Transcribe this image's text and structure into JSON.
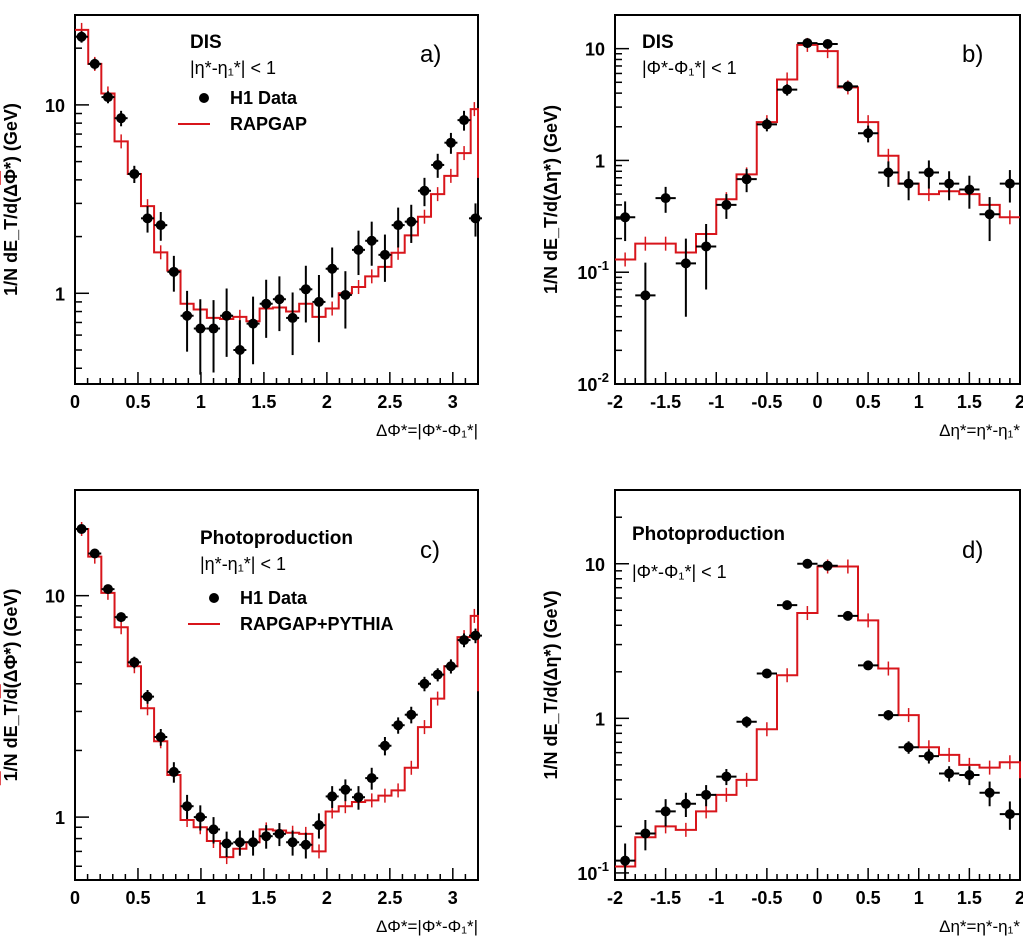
{
  "chart_data": [
    {
      "id": "a",
      "type": "step+errorbar",
      "panel_label": "a)",
      "title": "DIS",
      "cut": "|η*-η₁*| < 1",
      "legend": {
        "points": "H1 Data",
        "line": "RAPGAP",
        "placement": "top-center"
      },
      "xlabel": "ΔΦ*=|Φ*-Φ₁*|",
      "ylabel": "1/N dE_T/d(ΔΦ*) (GeV)",
      "xlim": [
        0,
        3.2
      ],
      "ylim": [
        0.33,
        30
      ],
      "yscale": "log",
      "xticks": [
        "0",
        "0.5",
        "1",
        "1.5",
        "2",
        "2.5",
        "3"
      ],
      "xtick_values": [
        0,
        0.5,
        1,
        1.5,
        2,
        2.5,
        3
      ],
      "yticks": [
        {
          "v": 1,
          "main": "1",
          "sup": ""
        },
        {
          "v": 10,
          "main": "10",
          "sup": ""
        }
      ],
      "colors": {
        "data": "#000000",
        "mc": "#d8151b"
      },
      "step": {
        "edges": [
          0,
          0.105,
          0.209,
          0.314,
          0.419,
          0.524,
          0.628,
          0.733,
          0.838,
          0.942,
          1.047,
          1.152,
          1.257,
          1.361,
          1.466,
          1.571,
          1.676,
          1.78,
          1.885,
          1.99,
          2.094,
          2.199,
          2.304,
          2.409,
          2.513,
          2.618,
          2.723,
          2.827,
          2.932,
          3.037,
          3.142,
          3.2
        ],
        "values": [
          25,
          16.5,
          11.5,
          6.4,
          4.3,
          2.9,
          1.65,
          1.32,
          0.88,
          0.82,
          0.74,
          0.73,
          0.75,
          0.71,
          0.83,
          0.84,
          0.8,
          0.88,
          0.75,
          0.83,
          1.0,
          1.08,
          1.23,
          1.38,
          1.64,
          2.03,
          2.55,
          3.36,
          4.2,
          5.55,
          9.5,
          4.1
        ]
      },
      "points": {
        "x": [
          0.052,
          0.157,
          0.262,
          0.366,
          0.471,
          0.576,
          0.681,
          0.785,
          0.89,
          0.995,
          1.1,
          1.204,
          1.309,
          1.414,
          1.518,
          1.623,
          1.728,
          1.833,
          1.937,
          2.042,
          2.147,
          2.251,
          2.356,
          2.461,
          2.566,
          2.67,
          2.775,
          2.88,
          2.985,
          3.089,
          3.18
        ],
        "y": [
          23,
          16.5,
          11,
          8.5,
          4.3,
          2.5,
          2.3,
          1.3,
          0.76,
          0.65,
          0.65,
          0.76,
          0.5,
          0.69,
          0.88,
          0.93,
          0.74,
          1.05,
          0.9,
          1.35,
          0.98,
          1.7,
          1.9,
          1.6,
          2.3,
          2.4,
          3.5,
          4.8,
          6.3,
          8.3,
          2.5
        ],
        "err_lo": [
          1.6,
          1.1,
          0.8,
          0.8,
          0.45,
          0.4,
          0.4,
          0.28,
          0.27,
          0.28,
          0.27,
          0.3,
          0.22,
          0.27,
          0.3,
          0.3,
          0.27,
          0.35,
          0.35,
          0.4,
          0.33,
          0.45,
          0.5,
          0.45,
          0.55,
          0.55,
          0.6,
          0.7,
          0.8,
          1.0,
          0.5
        ],
        "err_hi": [
          1.6,
          1.1,
          0.8,
          0.8,
          0.45,
          0.4,
          0.4,
          0.28,
          0.27,
          0.28,
          0.27,
          0.3,
          0.22,
          0.27,
          0.3,
          0.3,
          0.27,
          0.35,
          0.35,
          0.4,
          0.33,
          0.45,
          0.5,
          0.45,
          0.55,
          0.55,
          0.6,
          0.7,
          0.8,
          1.0,
          0.5
        ]
      }
    },
    {
      "id": "b",
      "type": "step+errorbar",
      "panel_label": "b)",
      "title": "DIS",
      "cut": "|Φ*-Φ₁*| < 1",
      "xlabel": "Δη*=η*-η₁*",
      "ylabel": "1/N dE_T/d(Δη*) (GeV)",
      "xlim": [
        -2,
        2
      ],
      "ylim": [
        0.01,
        20
      ],
      "yscale": "log",
      "xticks": [
        "-2",
        "-1.5",
        "-1",
        "-0.5",
        "0",
        "0.5",
        "1",
        "1.5",
        "2"
      ],
      "xtick_values": [
        -2,
        -1.5,
        -1,
        -0.5,
        0,
        0.5,
        1,
        1.5,
        2
      ],
      "yticks": [
        {
          "v": 0.01,
          "main": "10",
          "sup": "-2"
        },
        {
          "v": 0.1,
          "main": "10",
          "sup": "-1"
        },
        {
          "v": 1,
          "main": "1",
          "sup": ""
        },
        {
          "v": 10,
          "main": "10",
          "sup": ""
        }
      ],
      "colors": {
        "data": "#000000",
        "mc": "#d8151b"
      },
      "step": {
        "edges": [
          -2,
          -1.8,
          -1.6,
          -1.4,
          -1.2,
          -1.0,
          -0.8,
          -0.6,
          -0.4,
          -0.2,
          0,
          0.2,
          0.4,
          0.6,
          0.8,
          1.0,
          1.2,
          1.4,
          1.6,
          1.8,
          2.0
        ],
        "values": [
          0.13,
          0.18,
          0.18,
          0.15,
          0.22,
          0.45,
          0.75,
          2.2,
          5.3,
          10.8,
          9.5,
          4.5,
          2.2,
          1.1,
          0.62,
          0.5,
          0.53,
          0.5,
          0.4,
          0.31
        ]
      },
      "points": {
        "x": [
          -1.9,
          -1.7,
          -1.5,
          -1.3,
          -1.1,
          -0.9,
          -0.7,
          -0.5,
          -0.3,
          -0.1,
          0.1,
          0.3,
          0.5,
          0.7,
          0.9,
          1.1,
          1.3,
          1.5,
          1.7,
          1.9
        ],
        "y": [
          0.31,
          0.062,
          0.46,
          0.12,
          0.17,
          0.4,
          0.68,
          2.1,
          4.3,
          11.2,
          11,
          4.6,
          1.75,
          0.78,
          0.62,
          0.78,
          0.62,
          0.55,
          0.33,
          0.62
        ],
        "err_lo": [
          0.12,
          0.054,
          0.12,
          0.08,
          0.1,
          0.1,
          0.16,
          0.28,
          0.5,
          0.9,
          0.9,
          0.4,
          0.3,
          0.2,
          0.18,
          0.22,
          0.18,
          0.18,
          0.14,
          0.2
        ],
        "err_hi": [
          0.12,
          0.06,
          0.12,
          0.08,
          0.1,
          0.1,
          0.16,
          0.28,
          0.5,
          0.9,
          0.9,
          0.4,
          0.3,
          0.2,
          0.18,
          0.22,
          0.18,
          0.18,
          0.14,
          0.2
        ]
      }
    },
    {
      "id": "c",
      "type": "step+errorbar",
      "panel_label": "c)",
      "title": "Photoproduction",
      "cut": "|η*-η₁*| < 1",
      "legend": {
        "points": "H1 Data",
        "line": "RAPGAP+PYTHIA",
        "placement": "top-center"
      },
      "xlabel": "ΔΦ*=|Φ*-Φ₁*|",
      "ylabel": "1/N dE_T/d(ΔΦ*) (GeV)",
      "xlim": [
        0,
        3.2
      ],
      "ylim": [
        0.52,
        30
      ],
      "yscale": "log",
      "xticks": [
        "0",
        "0.5",
        "1",
        "1.5",
        "2",
        "2.5",
        "3"
      ],
      "xtick_values": [
        0,
        0.5,
        1,
        1.5,
        2,
        2.5,
        3
      ],
      "yticks": [
        {
          "v": 1,
          "main": "1",
          "sup": ""
        },
        {
          "v": 10,
          "main": "10",
          "sup": ""
        }
      ],
      "colors": {
        "data": "#000000",
        "mc": "#d8151b"
      },
      "step": {
        "edges": [
          0,
          0.105,
          0.209,
          0.314,
          0.419,
          0.524,
          0.628,
          0.733,
          0.838,
          0.942,
          1.047,
          1.152,
          1.257,
          1.361,
          1.466,
          1.571,
          1.676,
          1.78,
          1.885,
          1.99,
          2.094,
          2.199,
          2.304,
          2.409,
          2.513,
          2.618,
          2.723,
          2.827,
          2.932,
          3.037,
          3.142,
          3.2
        ],
        "values": [
          20,
          15,
          10.3,
          7.2,
          4.8,
          3.1,
          2.2,
          1.55,
          0.97,
          0.9,
          0.78,
          0.66,
          0.72,
          0.77,
          0.88,
          0.87,
          0.85,
          0.84,
          0.7,
          1.06,
          1.12,
          1.17,
          1.19,
          1.25,
          1.32,
          1.67,
          2.55,
          3.43,
          4.8,
          6.5,
          8.1,
          3.7
        ]
      },
      "points": {
        "x": [
          0.052,
          0.157,
          0.262,
          0.366,
          0.471,
          0.576,
          0.681,
          0.785,
          0.89,
          0.995,
          1.1,
          1.204,
          1.309,
          1.414,
          1.518,
          1.623,
          1.728,
          1.833,
          1.937,
          2.042,
          2.147,
          2.251,
          2.356,
          2.461,
          2.566,
          2.67,
          2.775,
          2.88,
          2.985,
          3.089,
          3.18
        ],
        "y": [
          20,
          15.5,
          10.7,
          8.0,
          5.0,
          3.5,
          2.3,
          1.6,
          1.12,
          1.0,
          0.88,
          0.76,
          0.77,
          0.77,
          0.82,
          0.84,
          0.77,
          0.75,
          0.92,
          1.24,
          1.33,
          1.23,
          1.5,
          2.1,
          2.6,
          2.9,
          4.0,
          4.4,
          4.8,
          6.3,
          6.6
        ],
        "err_lo": [
          0.8,
          0.6,
          0.45,
          0.4,
          0.3,
          0.25,
          0.2,
          0.17,
          0.14,
          0.13,
          0.12,
          0.1,
          0.1,
          0.1,
          0.1,
          0.1,
          0.1,
          0.1,
          0.12,
          0.14,
          0.15,
          0.15,
          0.17,
          0.2,
          0.22,
          0.25,
          0.3,
          0.3,
          0.35,
          0.45,
          0.5
        ],
        "err_hi": [
          0.8,
          0.6,
          0.45,
          0.4,
          0.3,
          0.25,
          0.2,
          0.17,
          0.14,
          0.13,
          0.12,
          0.1,
          0.1,
          0.1,
          0.1,
          0.1,
          0.1,
          0.1,
          0.12,
          0.14,
          0.15,
          0.15,
          0.17,
          0.2,
          0.22,
          0.25,
          0.3,
          0.3,
          0.35,
          0.45,
          0.5
        ]
      }
    },
    {
      "id": "d",
      "type": "step+errorbar",
      "panel_label": "d)",
      "title": "Photoproduction",
      "cut": "|Φ*-Φ₁*| < 1",
      "xlabel": "Δη*=η*-η₁*",
      "ylabel": "1/N dE_T/d(Δη*) (GeV)",
      "xlim": [
        -2,
        2
      ],
      "ylim": [
        0.09,
        30
      ],
      "yscale": "log",
      "xticks": [
        "-2",
        "-1.5",
        "-1",
        "-0.5",
        "0",
        "0.5",
        "1",
        "1.5",
        "2"
      ],
      "xtick_values": [
        -2,
        -1.5,
        -1,
        -0.5,
        0,
        0.5,
        1,
        1.5,
        2
      ],
      "yticks": [
        {
          "v": 0.1,
          "main": "10",
          "sup": "-1"
        },
        {
          "v": 1,
          "main": "1",
          "sup": ""
        },
        {
          "v": 10,
          "main": "10",
          "sup": ""
        }
      ],
      "colors": {
        "data": "#000000",
        "mc": "#d8151b"
      },
      "step": {
        "edges": [
          -2,
          -1.8,
          -1.6,
          -1.4,
          -1.2,
          -1.0,
          -0.8,
          -0.6,
          -0.4,
          -0.2,
          0,
          0.2,
          0.4,
          0.6,
          0.8,
          1.0,
          1.2,
          1.4,
          1.6,
          1.8,
          2.0
        ],
        "values": [
          0.11,
          0.17,
          0.2,
          0.19,
          0.25,
          0.32,
          0.4,
          0.85,
          1.9,
          4.8,
          9.6,
          9.6,
          4.3,
          2.1,
          1.05,
          0.65,
          0.58,
          0.5,
          0.48,
          0.52,
          0.41
        ]
      },
      "points": {
        "x": [
          -1.9,
          -1.7,
          -1.5,
          -1.3,
          -1.1,
          -0.9,
          -0.7,
          -0.5,
          -0.3,
          -0.1,
          0.1,
          0.3,
          0.5,
          0.7,
          0.9,
          1.1,
          1.3,
          1.5,
          1.7,
          1.9
        ],
        "y": [
          0.12,
          0.18,
          0.25,
          0.28,
          0.32,
          0.42,
          0.95,
          1.95,
          5.4,
          10,
          9.7,
          4.6,
          2.2,
          1.05,
          0.65,
          0.57,
          0.44,
          0.43,
          0.33,
          0.24
        ],
        "err_lo": [
          0.035,
          0.04,
          0.05,
          0.05,
          0.05,
          0.05,
          0.08,
          0.12,
          0.3,
          0.5,
          0.5,
          0.25,
          0.13,
          0.08,
          0.06,
          0.06,
          0.05,
          0.06,
          0.06,
          0.05
        ],
        "err_hi": [
          0.035,
          0.04,
          0.05,
          0.05,
          0.05,
          0.05,
          0.08,
          0.12,
          0.3,
          0.5,
          0.5,
          0.25,
          0.13,
          0.08,
          0.06,
          0.06,
          0.05,
          0.06,
          0.06,
          0.05
        ]
      }
    }
  ]
}
